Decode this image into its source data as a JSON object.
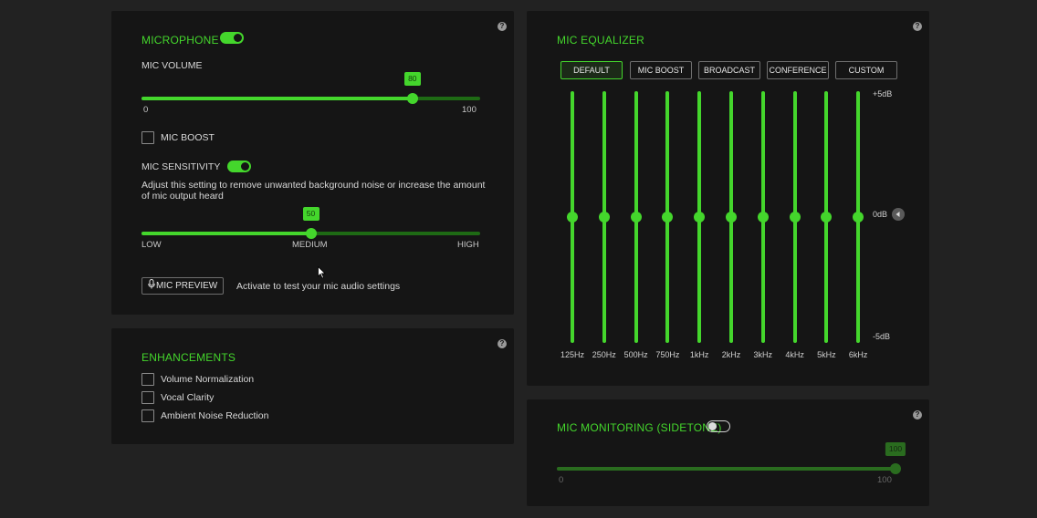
{
  "microphone": {
    "title": "MICROPHONE",
    "toggle_on": true,
    "volume_label": "MIC VOLUME",
    "volume_value": 80,
    "volume_value_label": "80",
    "volume_min": "0",
    "volume_max": "100",
    "mic_boost_label": "MIC BOOST",
    "mic_boost_checked": false,
    "sensitivity_label": "MIC SENSITIVITY",
    "sensitivity_toggle_on": true,
    "sensitivity_desc_line1": "Adjust this setting to remove unwanted background noise or increase the amount",
    "sensitivity_desc_line2": "of mic output heard",
    "sensitivity_value": 50,
    "sensitivity_value_label": "50",
    "sensitivity_low": "LOW",
    "sensitivity_medium": "MEDIUM",
    "sensitivity_high": "HIGH",
    "preview_button": "MIC PREVIEW",
    "preview_desc": "Activate to test your mic audio settings"
  },
  "enhancements": {
    "title": "ENHANCEMENTS",
    "options": [
      {
        "label": "Volume Normalization",
        "checked": false
      },
      {
        "label": "Vocal Clarity",
        "checked": false
      },
      {
        "label": "Ambient Noise Reduction",
        "checked": false
      }
    ]
  },
  "equalizer": {
    "title": "MIC EQUALIZER",
    "presets": [
      "DEFAULT",
      "MIC BOOST",
      "BROADCAST",
      "CONFERENCE",
      "CUSTOM"
    ],
    "active_preset": "DEFAULT",
    "db_top": "+5dB",
    "db_mid": "0dB",
    "db_bottom": "-5dB",
    "bands": [
      {
        "freq": "125Hz",
        "gain_db": 0
      },
      {
        "freq": "250Hz",
        "gain_db": 0
      },
      {
        "freq": "500Hz",
        "gain_db": 0
      },
      {
        "freq": "750Hz",
        "gain_db": 0
      },
      {
        "freq": "1kHz",
        "gain_db": 0
      },
      {
        "freq": "2kHz",
        "gain_db": 0
      },
      {
        "freq": "3kHz",
        "gain_db": 0
      },
      {
        "freq": "4kHz",
        "gain_db": 0
      },
      {
        "freq": "5kHz",
        "gain_db": 0
      },
      {
        "freq": "6kHz",
        "gain_db": 0
      }
    ]
  },
  "monitoring": {
    "title": "MIC MONITORING (SIDETONE)",
    "toggle_on": false,
    "value": 100,
    "value_label": "100",
    "min": "0",
    "max": "100"
  },
  "help_glyph": "?",
  "colors": {
    "accent": "#44d62c",
    "panel": "#151515",
    "background": "#222222"
  }
}
